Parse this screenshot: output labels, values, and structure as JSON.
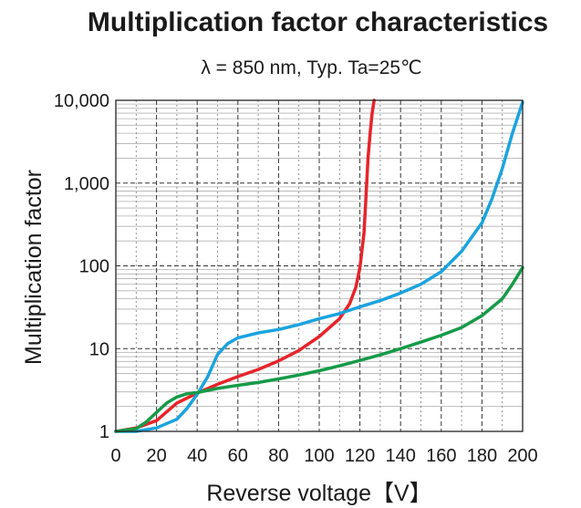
{
  "chart_data": {
    "type": "line",
    "title": "Multiplication factor characteristics",
    "subtitle": "λ = 850 nm, Typ. Ta=25℃",
    "xlabel": "Reverse voltage【V】",
    "ylabel": "Multiplication factor",
    "xlim": [
      0,
      200
    ],
    "ylim": [
      1,
      10000
    ],
    "yscale": "log",
    "grid": true,
    "x_ticks": [
      "0",
      "20",
      "40",
      "60",
      "80",
      "100",
      "120",
      "140",
      "160",
      "180",
      "200"
    ],
    "y_ticks": [
      "1",
      "10",
      "100",
      "1,000",
      "10,000"
    ],
    "series": [
      {
        "color": "#e8232a",
        "points": [
          [
            0,
            1
          ],
          [
            10,
            1.1
          ],
          [
            20,
            1.35
          ],
          [
            30,
            2.2
          ],
          [
            40,
            2.9
          ],
          [
            50,
            3.7
          ],
          [
            60,
            4.6
          ],
          [
            70,
            5.6
          ],
          [
            80,
            7.1
          ],
          [
            90,
            9.5
          ],
          [
            100,
            14
          ],
          [
            110,
            23
          ],
          [
            115,
            35
          ],
          [
            118,
            55
          ],
          [
            120,
            95
          ],
          [
            122,
            250
          ],
          [
            123,
            700
          ],
          [
            124,
            2000
          ],
          [
            125,
            4000
          ],
          [
            126,
            7000
          ],
          [
            127,
            10000
          ]
        ]
      },
      {
        "color": "#1aa3df",
        "points": [
          [
            0,
            1
          ],
          [
            10,
            1
          ],
          [
            20,
            1.1
          ],
          [
            30,
            1.4
          ],
          [
            35,
            1.9
          ],
          [
            40,
            2.8
          ],
          [
            45,
            4.5
          ],
          [
            50,
            8.5
          ],
          [
            55,
            11.5
          ],
          [
            60,
            13.5
          ],
          [
            70,
            15.5
          ],
          [
            80,
            17
          ],
          [
            90,
            19.5
          ],
          [
            100,
            23
          ],
          [
            110,
            26.5
          ],
          [
            120,
            32
          ],
          [
            130,
            38
          ],
          [
            140,
            47
          ],
          [
            150,
            60
          ],
          [
            160,
            85
          ],
          [
            170,
            150
          ],
          [
            180,
            330
          ],
          [
            185,
            650
          ],
          [
            190,
            1500
          ],
          [
            195,
            4000
          ],
          [
            200,
            9500
          ]
        ]
      },
      {
        "color": "#169a48",
        "points": [
          [
            0,
            1
          ],
          [
            10,
            1.08
          ],
          [
            15,
            1.3
          ],
          [
            20,
            1.7
          ],
          [
            25,
            2.2
          ],
          [
            30,
            2.6
          ],
          [
            35,
            2.85
          ],
          [
            40,
            2.95
          ],
          [
            50,
            3.3
          ],
          [
            60,
            3.6
          ],
          [
            70,
            3.9
          ],
          [
            80,
            4.3
          ],
          [
            90,
            4.8
          ],
          [
            100,
            5.4
          ],
          [
            110,
            6.2
          ],
          [
            120,
            7.2
          ],
          [
            130,
            8.4
          ],
          [
            140,
            10
          ],
          [
            150,
            12
          ],
          [
            160,
            14.5
          ],
          [
            170,
            18
          ],
          [
            180,
            25
          ],
          [
            190,
            40
          ],
          [
            195,
            60
          ],
          [
            200,
            95
          ]
        ]
      }
    ]
  }
}
